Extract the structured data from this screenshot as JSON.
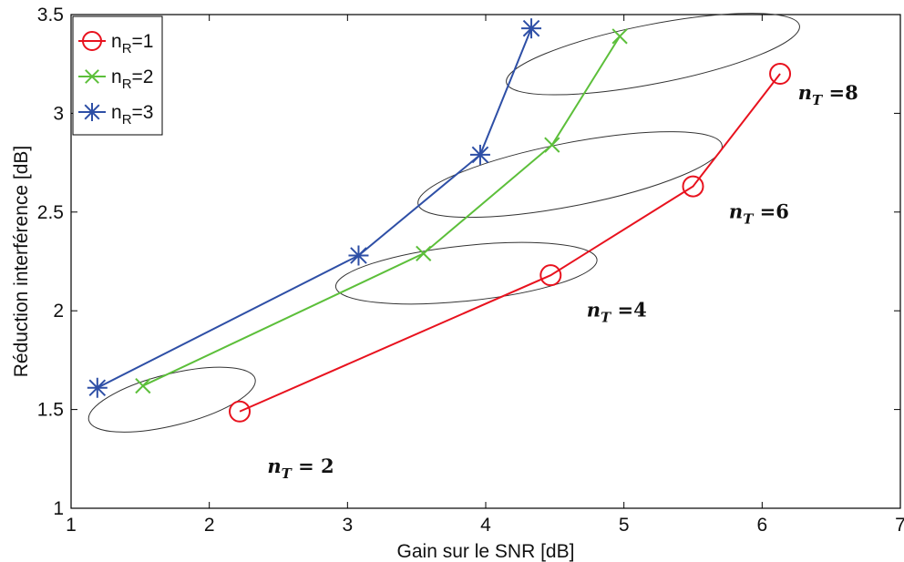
{
  "chart_data": {
    "type": "line",
    "xlabel": "Gain sur le SNR [dB]",
    "ylabel": "Réduction interférence [dB]",
    "xlim": [
      1,
      7
    ],
    "ylim": [
      1,
      3.5
    ],
    "xticks": [
      "1",
      "2",
      "3",
      "4",
      "5",
      "6",
      "7"
    ],
    "yticks": [
      "1",
      "1.5",
      "2",
      "2.5",
      "3",
      "3.5"
    ],
    "grid": false,
    "legend_position": "top-left",
    "series": [
      {
        "name": "n_R=1",
        "legend_main": "n",
        "legend_sub": "R",
        "legend_rest": "=1",
        "color": "#e8121e",
        "marker": "circle",
        "x": [
          2.22,
          4.47,
          5.5,
          6.13
        ],
        "y": [
          1.49,
          2.18,
          2.63,
          3.2
        ]
      },
      {
        "name": "n_R=2",
        "legend_main": "n",
        "legend_sub": "R",
        "legend_rest": "=2",
        "color": "#5cbf3a",
        "marker": "x",
        "x": [
          1.52,
          3.55,
          4.48,
          4.97
        ],
        "y": [
          1.62,
          2.29,
          2.84,
          3.39
        ]
      },
      {
        "name": "n_R=3",
        "legend_main": "n",
        "legend_sub": "R",
        "legend_rest": "=3",
        "color": "#2e4fa6",
        "marker": "asterisk",
        "x": [
          1.19,
          3.08,
          3.96,
          4.33
        ],
        "y": [
          1.61,
          2.28,
          2.79,
          3.43
        ]
      }
    ],
    "annotations": [
      {
        "main": "n",
        "sub": "T",
        "rest": " = 2",
        "x": 2.42,
        "y": 1.18
      },
      {
        "main": "n",
        "sub": "T",
        "rest": " =4",
        "x": 4.73,
        "y": 1.97
      },
      {
        "main": "n",
        "sub": "T",
        "rest": " =6",
        "x": 5.76,
        "y": 2.47
      },
      {
        "main": "n",
        "sub": "T",
        "rest": " =8",
        "x": 6.26,
        "y": 3.07
      }
    ],
    "ellipses": [
      {
        "label": "n_T=2",
        "cx": 1.73,
        "cy": 1.55,
        "rx": 0.62,
        "ry": 0.13,
        "angle": 14
      },
      {
        "label": "n_T=4",
        "cx": 3.86,
        "cy": 2.19,
        "rx": 0.95,
        "ry": 0.14,
        "angle": 6
      },
      {
        "label": "n_T=6",
        "cx": 4.61,
        "cy": 2.69,
        "rx": 1.12,
        "ry": 0.16,
        "angle": 11
      },
      {
        "label": "n_T=8",
        "cx": 5.21,
        "cy": 3.3,
        "rx": 1.08,
        "ry": 0.15,
        "angle": 11
      }
    ]
  }
}
